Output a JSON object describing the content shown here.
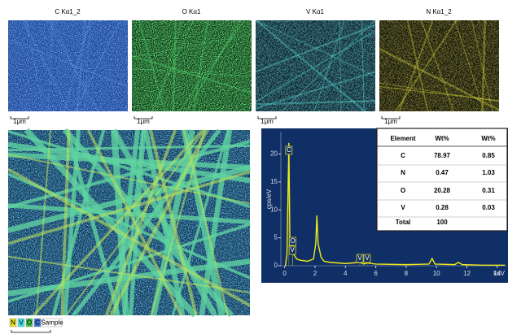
{
  "maps": [
    {
      "label": "C Kα1_2",
      "scale": "1μm"
    },
    {
      "label": "O Kα1",
      "scale": "1μm"
    },
    {
      "label": "V Kα1",
      "scale": "1μm"
    },
    {
      "label": "N Kα1_2",
      "scale": "1μm"
    }
  ],
  "composite": {
    "legend": [
      "N",
      "V",
      "O",
      "C",
      "Sample"
    ]
  },
  "chart_data": {
    "type": "line",
    "y_label": "cps/eV",
    "x_label": "keV",
    "color": "#f2ea1a",
    "x": [
      0.05,
      0.15,
      0.277,
      0.35,
      0.39,
      0.52,
      0.6,
      0.8,
      1.0,
      1.5,
      1.9,
      2.05,
      2.12,
      2.2,
      2.4,
      2.6,
      3.0,
      4.0,
      4.95,
      5.2,
      5.43,
      6.0,
      8.0,
      9.5,
      9.71,
      9.9,
      11.2,
      11.44,
      11.7,
      13.0,
      14.5
    ],
    "values": [
      0,
      2,
      22,
      3,
      2.5,
      4.2,
      2,
      1.2,
      1.0,
      0.8,
      1.2,
      4,
      9,
      4,
      1.5,
      0.8,
      0.6,
      0.4,
      0.6,
      0.3,
      0.5,
      0.3,
      0.2,
      0.3,
      1.3,
      0.3,
      0.2,
      0.6,
      0.2,
      0.1,
      0.1
    ],
    "xlim": [
      -0.25,
      14.6
    ],
    "ylim": [
      0,
      24
    ],
    "xticks": [
      0,
      2,
      4,
      6,
      8,
      10,
      12,
      14
    ],
    "yticks": [
      0,
      5,
      10,
      15,
      20
    ],
    "annotations": [
      {
        "text": "C",
        "x": 0.277
      },
      {
        "text": "O",
        "x": 0.525
      },
      {
        "text": "V",
        "x": 0.51
      },
      {
        "text": "V",
        "x": 4.95
      },
      {
        "text": "V",
        "x": 5.43
      }
    ]
  },
  "table": {
    "header": [
      "Element",
      "Wt%",
      "Wt%"
    ],
    "rows": [
      [
        "C",
        "78.97",
        "0.85"
      ],
      [
        "N",
        "0.47",
        "1.03"
      ],
      [
        "O",
        "20.28",
        "0.31"
      ],
      [
        "V",
        "0.28",
        "0.03"
      ],
      [
        "Total",
        "100",
        ""
      ]
    ]
  }
}
